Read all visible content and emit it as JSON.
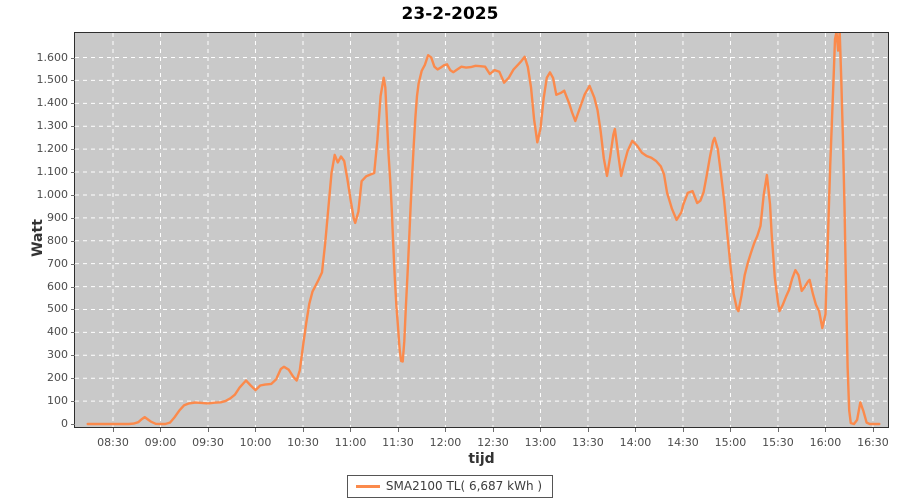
{
  "title": "23-2-2025",
  "legend": {
    "label": "SMA2100 TL( 6,687 kWh )"
  },
  "colors": {
    "line": "#fb8a4c",
    "plot_background": "#c9c9c9",
    "gridline": "#ffffff",
    "plot_border": "#2e2e2e",
    "tick_label": "#4c4c4c",
    "axis_label": "#333333",
    "title": "#000000",
    "legend_border": "#555555"
  },
  "chart_data": {
    "type": "line",
    "title": "23-2-2025",
    "xlabel": "tijd",
    "ylabel": "Watt",
    "grid": true,
    "legend_position": "bottom-center",
    "series_name": "SMA2100 TL( 6,687 kWh )",
    "total_energy_label": "6,687 kWh",
    "ylim": [
      -13,
      1707
    ],
    "xlim_minutes": [
      486,
      999.5
    ],
    "y_ticks": [
      {
        "value": 0,
        "label": "0"
      },
      {
        "value": 100,
        "label": "100"
      },
      {
        "value": 200,
        "label": "200"
      },
      {
        "value": 300,
        "label": "300"
      },
      {
        "value": 400,
        "label": "400"
      },
      {
        "value": 500,
        "label": "500"
      },
      {
        "value": 600,
        "label": "600"
      },
      {
        "value": 700,
        "label": "700"
      },
      {
        "value": 800,
        "label": "800"
      },
      {
        "value": 900,
        "label": "900"
      },
      {
        "value": 1000,
        "label": "1.000"
      },
      {
        "value": 1100,
        "label": "1.100"
      },
      {
        "value": 1200,
        "label": "1.200"
      },
      {
        "value": 1300,
        "label": "1.300"
      },
      {
        "value": 1400,
        "label": "1.400"
      },
      {
        "value": 1500,
        "label": "1.500"
      },
      {
        "value": 1600,
        "label": "1.600"
      }
    ],
    "x_ticks": [
      {
        "minutes": 510,
        "label": "08:30"
      },
      {
        "minutes": 540,
        "label": "09:00"
      },
      {
        "minutes": 570,
        "label": "09:30"
      },
      {
        "minutes": 600,
        "label": "10:00"
      },
      {
        "minutes": 630,
        "label": "10:30"
      },
      {
        "minutes": 660,
        "label": "11:00"
      },
      {
        "minutes": 690,
        "label": "11:30"
      },
      {
        "minutes": 720,
        "label": "12:00"
      },
      {
        "minutes": 750,
        "label": "12:30"
      },
      {
        "minutes": 780,
        "label": "13:00"
      },
      {
        "minutes": 810,
        "label": "13:30"
      },
      {
        "minutes": 840,
        "label": "14:00"
      },
      {
        "minutes": 870,
        "label": "14:30"
      },
      {
        "minutes": 900,
        "label": "15:00"
      },
      {
        "minutes": 930,
        "label": "15:30"
      },
      {
        "minutes": 960,
        "label": "16:00"
      },
      {
        "minutes": 990,
        "label": "16:30"
      }
    ],
    "points_min_watt": [
      [
        494,
        0
      ],
      [
        500,
        0
      ],
      [
        506,
        0
      ],
      [
        511,
        0
      ],
      [
        516,
        0
      ],
      [
        520,
        0
      ],
      [
        523,
        2
      ],
      [
        526,
        8
      ],
      [
        528,
        20
      ],
      [
        530,
        30
      ],
      [
        532,
        20
      ],
      [
        534,
        10
      ],
      [
        537,
        1
      ],
      [
        540,
        0
      ],
      [
        543,
        0
      ],
      [
        546,
        6
      ],
      [
        549,
        30
      ],
      [
        552,
        60
      ],
      [
        555,
        82
      ],
      [
        558,
        90
      ],
      [
        562,
        94
      ],
      [
        566,
        92
      ],
      [
        570,
        90
      ],
      [
        574,
        93
      ],
      [
        578,
        95
      ],
      [
        581,
        100
      ],
      [
        584,
        112
      ],
      [
        587,
        128
      ],
      [
        590,
        160
      ],
      [
        594,
        190
      ],
      [
        597,
        168
      ],
      [
        600,
        148
      ],
      [
        603,
        168
      ],
      [
        606,
        172
      ],
      [
        610,
        175
      ],
      [
        613,
        195
      ],
      [
        616,
        240
      ],
      [
        618,
        250
      ],
      [
        621,
        237
      ],
      [
        624,
        205
      ],
      [
        626,
        190
      ],
      [
        628,
        235
      ],
      [
        630,
        340
      ],
      [
        632,
        440
      ],
      [
        634,
        525
      ],
      [
        636,
        578
      ],
      [
        638,
        605
      ],
      [
        640,
        632
      ],
      [
        642,
        662
      ],
      [
        644,
        790
      ],
      [
        646,
        940
      ],
      [
        648,
        1095
      ],
      [
        650,
        1175
      ],
      [
        652,
        1142
      ],
      [
        654,
        1168
      ],
      [
        656,
        1148
      ],
      [
        658,
        1072
      ],
      [
        660,
        982
      ],
      [
        662,
        898
      ],
      [
        663,
        878
      ],
      [
        665,
        928
      ],
      [
        667,
        1060
      ],
      [
        670,
        1082
      ],
      [
        673,
        1090
      ],
      [
        675,
        1096
      ],
      [
        677,
        1240
      ],
      [
        679,
        1432
      ],
      [
        681,
        1512
      ],
      [
        682,
        1470
      ],
      [
        683,
        1330
      ],
      [
        684,
        1180
      ],
      [
        685,
        1072
      ],
      [
        686,
        942
      ],
      [
        687,
        788
      ],
      [
        688,
        638
      ],
      [
        689,
        515
      ],
      [
        690,
        425
      ],
      [
        691,
        328
      ],
      [
        692,
        275
      ],
      [
        693,
        273
      ],
      [
        694,
        362
      ],
      [
        695,
        515
      ],
      [
        696,
        652
      ],
      [
        697,
        800
      ],
      [
        698,
        948
      ],
      [
        699,
        1090
      ],
      [
        700,
        1222
      ],
      [
        701,
        1340
      ],
      [
        702,
        1432
      ],
      [
        703,
        1486
      ],
      [
        705,
        1542
      ],
      [
        707,
        1568
      ],
      [
        709,
        1610
      ],
      [
        711,
        1600
      ],
      [
        713,
        1560
      ],
      [
        715,
        1548
      ],
      [
        717,
        1556
      ],
      [
        719,
        1566
      ],
      [
        721,
        1570
      ],
      [
        723,
        1545
      ],
      [
        725,
        1536
      ],
      [
        727,
        1546
      ],
      [
        730,
        1560
      ],
      [
        733,
        1556
      ],
      [
        736,
        1558
      ],
      [
        739,
        1564
      ],
      [
        742,
        1562
      ],
      [
        745,
        1560
      ],
      [
        748,
        1528
      ],
      [
        751,
        1545
      ],
      [
        754,
        1538
      ],
      [
        757,
        1490
      ],
      [
        760,
        1512
      ],
      [
        763,
        1548
      ],
      [
        766,
        1570
      ],
      [
        768,
        1585
      ],
      [
        770,
        1603
      ],
      [
        772,
        1560
      ],
      [
        774,
        1470
      ],
      [
        776,
        1330
      ],
      [
        778,
        1230
      ],
      [
        780,
        1290
      ],
      [
        782,
        1420
      ],
      [
        784,
        1512
      ],
      [
        786,
        1535
      ],
      [
        788,
        1510
      ],
      [
        790,
        1437
      ],
      [
        793,
        1446
      ],
      [
        795,
        1455
      ],
      [
        798,
        1402
      ],
      [
        800,
        1360
      ],
      [
        802,
        1323
      ],
      [
        805,
        1382
      ],
      [
        808,
        1440
      ],
      [
        811,
        1476
      ],
      [
        814,
        1425
      ],
      [
        816,
        1371
      ],
      [
        818,
        1280
      ],
      [
        820,
        1160
      ],
      [
        822,
        1083
      ],
      [
        824,
        1165
      ],
      [
        826,
        1262
      ],
      [
        827,
        1288
      ],
      [
        829,
        1180
      ],
      [
        831,
        1083
      ],
      [
        833,
        1140
      ],
      [
        835,
        1192
      ],
      [
        838,
        1236
      ],
      [
        841,
        1215
      ],
      [
        844,
        1185
      ],
      [
        847,
        1170
      ],
      [
        850,
        1162
      ],
      [
        853,
        1148
      ],
      [
        856,
        1125
      ],
      [
        858,
        1090
      ],
      [
        860,
        1009
      ],
      [
        863,
        940
      ],
      [
        866,
        891
      ],
      [
        869,
        925
      ],
      [
        870,
        955
      ],
      [
        873,
        1009
      ],
      [
        876,
        1017
      ],
      [
        879,
        965
      ],
      [
        881,
        975
      ],
      [
        883,
        1012
      ],
      [
        885,
        1085
      ],
      [
        887,
        1165
      ],
      [
        889,
        1235
      ],
      [
        890,
        1249
      ],
      [
        892,
        1200
      ],
      [
        894,
        1090
      ],
      [
        896,
        978
      ],
      [
        898,
        830
      ],
      [
        900,
        690
      ],
      [
        902,
        570
      ],
      [
        904,
        505
      ],
      [
        905,
        493
      ],
      [
        907,
        560
      ],
      [
        909,
        650
      ],
      [
        911,
        705
      ],
      [
        913,
        748
      ],
      [
        915,
        790
      ],
      [
        917,
        822
      ],
      [
        919,
        865
      ],
      [
        921,
        1000
      ],
      [
        923,
        1087
      ],
      [
        925,
        960
      ],
      [
        926,
        834
      ],
      [
        928,
        640
      ],
      [
        930,
        530
      ],
      [
        931,
        493
      ],
      [
        933,
        520
      ],
      [
        935,
        555
      ],
      [
        937,
        585
      ],
      [
        939,
        635
      ],
      [
        941,
        672
      ],
      [
        943,
        650
      ],
      [
        945,
        581
      ],
      [
        947,
        600
      ],
      [
        949,
        622
      ],
      [
        950,
        629
      ],
      [
        952,
        570
      ],
      [
        954,
        520
      ],
      [
        956,
        493
      ],
      [
        958,
        419
      ],
      [
        960,
        480
      ],
      [
        961,
        690
      ],
      [
        963,
        1127
      ],
      [
        965,
        1489
      ],
      [
        966,
        1680
      ],
      [
        967,
        1712
      ],
      [
        968,
        1630
      ],
      [
        969,
        1712
      ],
      [
        970,
        1500
      ],
      [
        971,
        1250
      ],
      [
        972,
        950
      ],
      [
        973,
        600
      ],
      [
        974,
        250
      ],
      [
        975,
        60
      ],
      [
        976,
        4
      ],
      [
        978,
        0
      ],
      [
        980,
        18
      ],
      [
        982,
        95
      ],
      [
        984,
        55
      ],
      [
        986,
        6
      ],
      [
        988,
        0
      ],
      [
        991,
        0
      ],
      [
        994,
        0
      ]
    ]
  }
}
